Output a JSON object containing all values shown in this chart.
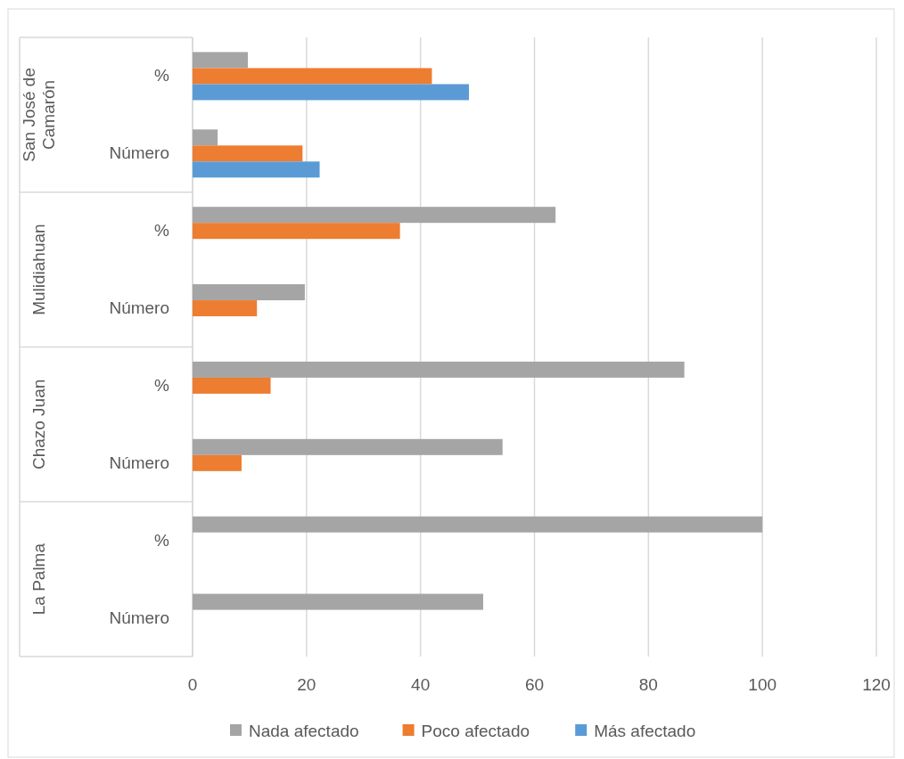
{
  "chart_data": {
    "type": "bar",
    "orientation": "horizontal",
    "categories": [
      "%",
      "Número",
      "%",
      "Número",
      "%",
      "Número",
      "%",
      "Número"
    ],
    "annotations": [
      "San José de Camarón",
      "Mulidiahuan",
      "Chazo Juan",
      "La Palma"
    ],
    "series": [
      {
        "name": "Nada afectado",
        "color": "#a5a5a5",
        "values": [
          9.7,
          4.4,
          63.7,
          19.7,
          86.3,
          54.4,
          100,
          51
        ]
      },
      {
        "name": "Poco afectado",
        "color": "#ed7d31",
        "values": [
          42,
          19.3,
          36.4,
          11.3,
          13.7,
          8.6,
          null,
          null
        ]
      },
      {
        "name": "Más afectado",
        "color": "#5b9bd5",
        "values": [
          48.5,
          22.3,
          null,
          null,
          null,
          null,
          null,
          null
        ]
      }
    ],
    "xlim": [
      0,
      120
    ],
    "xticks": [
      0,
      20,
      40,
      60,
      80,
      100,
      120
    ],
    "grid": "x",
    "legend": "bottom"
  }
}
